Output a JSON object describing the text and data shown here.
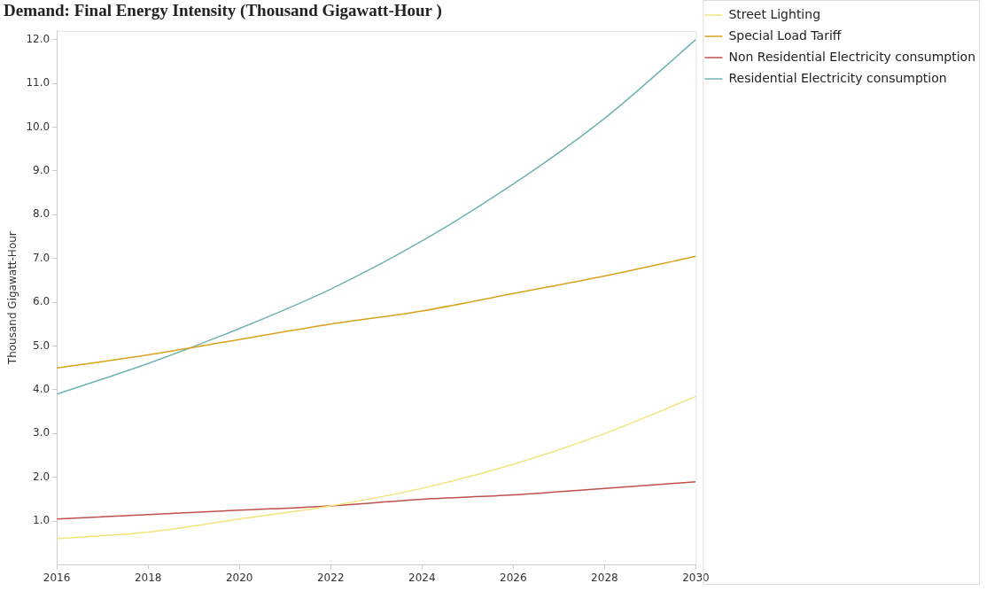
{
  "chart_data": {
    "type": "line",
    "title": "Demand: Final Energy Intensity (Thousand Gigawatt-Hour )",
    "ylabel": "Thousand Gigawatt-Hour",
    "x": [
      2016,
      2018,
      2020,
      2022,
      2024,
      2026,
      2028,
      2030
    ],
    "xlim": [
      2016,
      2030
    ],
    "xticks": [
      2016,
      2018,
      2020,
      2022,
      2024,
      2026,
      2028,
      2030
    ],
    "ylim": [
      0,
      12.2
    ],
    "yticks": [
      {
        "value": 1,
        "label": "1.0"
      },
      {
        "value": 2,
        "label": "2.0"
      },
      {
        "value": 3,
        "label": "3.0"
      },
      {
        "value": 4,
        "label": "4.0"
      },
      {
        "value": 5,
        "label": "5.0"
      },
      {
        "value": 6,
        "label": "6.0"
      },
      {
        "value": 7,
        "label": "7.0"
      },
      {
        "value": 8,
        "label": "8.0"
      },
      {
        "value": 9,
        "label": "9.0"
      },
      {
        "value": 10,
        "label": "10.0"
      },
      {
        "value": 11,
        "label": "11.0"
      },
      {
        "value": 12,
        "label": "12.0"
      }
    ],
    "series": [
      {
        "name": "Street Lighting",
        "color": "#f3e37c",
        "values": [
          0.6,
          0.75,
          1.05,
          1.35,
          1.75,
          2.3,
          3.0,
          3.85
        ]
      },
      {
        "name": "Special Load Tariff",
        "color": "#d9a21e",
        "values": [
          4.5,
          4.8,
          5.15,
          5.5,
          5.8,
          6.2,
          6.6,
          7.05
        ]
      },
      {
        "name": "Non Residential Electricity consumption",
        "color": "#c0504d",
        "values": [
          1.05,
          1.15,
          1.25,
          1.35,
          1.5,
          1.6,
          1.75,
          1.9
        ]
      },
      {
        "name": "Residential Electricity consumption",
        "color": "#6fb3b0",
        "values": [
          3.9,
          4.6,
          5.4,
          6.3,
          7.4,
          8.7,
          10.2,
          12.0
        ]
      }
    ],
    "grid": false,
    "legend": "top right",
    "marker": "none",
    "line_style": "solid"
  }
}
